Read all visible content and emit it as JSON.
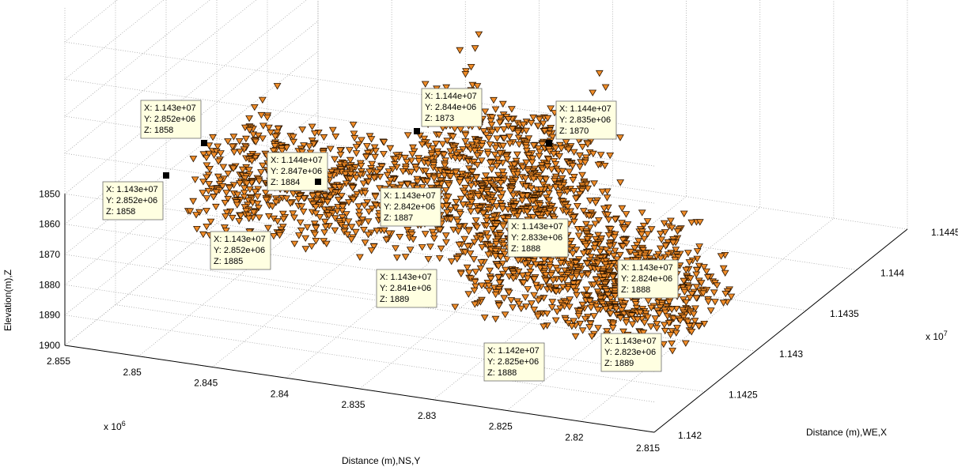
{
  "chart_data": {
    "type": "scatter",
    "subtype": "3d-scatter-triangle-markers",
    "title": "",
    "marker_color": "#F08C28",
    "marker_edge_color": "#2b1500",
    "grid": true,
    "axes": {
      "x": {
        "label": "Distance (m),WE,X",
        "range": [
          11420000.0,
          11445000.0
        ],
        "ticks": [
          "1.142",
          "1.1425",
          "1.143",
          "1.1435",
          "1.144",
          "1.1445"
        ],
        "multiplier": "x 10",
        "multiplier_exp": "7"
      },
      "y": {
        "label": "Distance (m),NS,Y",
        "range": [
          2815000.0,
          2855000.0
        ],
        "ticks": [
          "2.855",
          "2.85",
          "2.845",
          "2.84",
          "2.835",
          "2.83",
          "2.825",
          "2.82",
          "2.815"
        ],
        "multiplier": "x 10",
        "multiplier_exp": "6"
      },
      "z": {
        "label": "Elevation(m),Z",
        "range": [
          1850,
          1900
        ],
        "reversed": true,
        "ticks": [
          "1850",
          "1860",
          "1870",
          "1880",
          "1890",
          "1900"
        ]
      }
    },
    "datatips": [
      {
        "x": "1.143e+07",
        "y": "2.852e+06",
        "z": "1858"
      },
      {
        "x": "1.143e+07",
        "y": "2.852e+06",
        "z": "1858"
      },
      {
        "x": "1.144e+07",
        "y": "2.847e+06",
        "z": "1884"
      },
      {
        "x": "1.144e+07",
        "y": "2.844e+06",
        "z": "1873"
      },
      {
        "x": "1.144e+07",
        "y": "2.835e+06",
        "z": "1870"
      },
      {
        "x": "1.143e+07",
        "y": "2.842e+06",
        "z": "1887"
      },
      {
        "x": "1.143e+07",
        "y": "2.852e+06",
        "z": "1885"
      },
      {
        "x": "1.143e+07",
        "y": "2.833e+06",
        "z": "1888"
      },
      {
        "x": "1.143e+07",
        "y": "2.841e+06",
        "z": "1889"
      },
      {
        "x": "1.143e+07",
        "y": "2.824e+06",
        "z": "1888"
      },
      {
        "x": "1.143e+07",
        "y": "2.823e+06",
        "z": "1889"
      },
      {
        "x": "1.142e+07",
        "y": "2.825e+06",
        "z": "1888"
      }
    ],
    "datatip_prefixes": {
      "x": "X: ",
      "y": "Y: ",
      "z": "Z: "
    }
  }
}
